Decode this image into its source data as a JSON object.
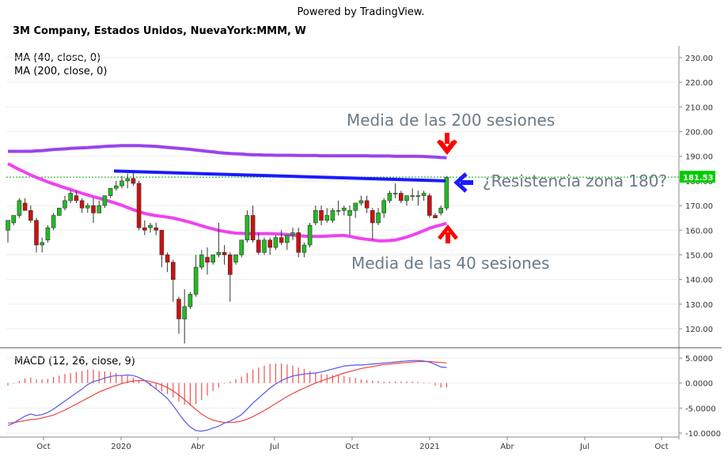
{
  "header": {
    "powered_by": "Powered by TradingView.",
    "symbol": "3M Company, Estados Unidos, NuevaYork:MMM, W"
  },
  "indicators": {
    "ma40": "MA (40, close, 0)",
    "ma200": "MA (200, close, 0)",
    "macd": "MACD (12, 26, close, 9)"
  },
  "annotations": {
    "ma200_label": "Media de las 200 sesiones",
    "ma40_label": "Media de las 40 sesiones",
    "resistance_label": "¿Resistencia zona 180?"
  },
  "price_badge": "181.53",
  "colors": {
    "up": "#22bb22",
    "down": "#cc1111",
    "ma200": "#9944ee",
    "ma40": "#ee44ee",
    "trendline": "#1a1aff",
    "arrow_red": "#ff0000",
    "arrow_blue": "#1a1aff",
    "macd_line": "#5555ee",
    "signal_line": "#ee4444",
    "badge": "#00cc00"
  },
  "chart_data": [
    {
      "type": "candlestick",
      "title": "3M Company, Estados Unidos, NuevaYork:MMM, W",
      "timeframe": "weekly",
      "ylim": [
        110,
        232
      ],
      "y_ticks": [
        "230.00",
        "220.00",
        "210.00",
        "200.00",
        "190.00",
        "180.00",
        "170.00",
        "160.00",
        "150.00",
        "140.00",
        "130.00",
        "120.00"
      ],
      "x_ticks": [
        "Oct",
        "2020",
        "Abr",
        "Jul",
        "Oct",
        "2021",
        "Abr",
        "Jul",
        "Oct"
      ],
      "last_price": 181.53,
      "candles": [
        {
          "o": 160,
          "h": 163,
          "l": 155,
          "c": 164
        },
        {
          "o": 163,
          "h": 165,
          "l": 162,
          "c": 166
        },
        {
          "o": 166,
          "h": 173,
          "l": 165,
          "c": 172
        },
        {
          "o": 171,
          "h": 173,
          "l": 168,
          "c": 168
        },
        {
          "o": 168,
          "h": 170,
          "l": 163,
          "c": 164
        },
        {
          "o": 164,
          "h": 165,
          "l": 151,
          "c": 154
        },
        {
          "o": 154,
          "h": 157,
          "l": 151,
          "c": 155
        },
        {
          "o": 156,
          "h": 162,
          "l": 155,
          "c": 161
        },
        {
          "o": 161,
          "h": 167,
          "l": 160,
          "c": 166
        },
        {
          "o": 166,
          "h": 169,
          "l": 166,
          "c": 169
        },
        {
          "o": 169,
          "h": 174,
          "l": 168,
          "c": 172
        },
        {
          "o": 172,
          "h": 176,
          "l": 171,
          "c": 175
        },
        {
          "o": 174,
          "h": 176,
          "l": 171,
          "c": 172
        },
        {
          "o": 172,
          "h": 173,
          "l": 167,
          "c": 169
        },
        {
          "o": 169,
          "h": 171,
          "l": 167,
          "c": 170
        },
        {
          "o": 170,
          "h": 173,
          "l": 163,
          "c": 167
        },
        {
          "o": 167,
          "h": 172,
          "l": 167,
          "c": 170
        },
        {
          "o": 170,
          "h": 174,
          "l": 169,
          "c": 174
        },
        {
          "o": 174,
          "h": 177,
          "l": 173,
          "c": 177
        },
        {
          "o": 177,
          "h": 180,
          "l": 176,
          "c": 178
        },
        {
          "o": 178,
          "h": 182,
          "l": 177,
          "c": 180
        },
        {
          "o": 180,
          "h": 183,
          "l": 177,
          "c": 181
        },
        {
          "o": 181,
          "h": 184,
          "l": 178,
          "c": 179
        },
        {
          "o": 179,
          "h": 180,
          "l": 160,
          "c": 161
        },
        {
          "o": 161,
          "h": 164,
          "l": 158,
          "c": 160
        },
        {
          "o": 161,
          "h": 163,
          "l": 159,
          "c": 162
        },
        {
          "o": 161,
          "h": 163,
          "l": 158,
          "c": 160
        },
        {
          "o": 160,
          "h": 160,
          "l": 145,
          "c": 150
        },
        {
          "o": 150,
          "h": 151,
          "l": 143,
          "c": 147
        },
        {
          "o": 147,
          "h": 148,
          "l": 131,
          "c": 140
        },
        {
          "o": 132,
          "h": 133,
          "l": 118,
          "c": 124
        },
        {
          "o": 124,
          "h": 136,
          "l": 114,
          "c": 129
        },
        {
          "o": 129,
          "h": 135,
          "l": 128,
          "c": 134
        },
        {
          "o": 134,
          "h": 150,
          "l": 133,
          "c": 145
        },
        {
          "o": 145,
          "h": 152,
          "l": 144,
          "c": 150
        },
        {
          "o": 149,
          "h": 153,
          "l": 142,
          "c": 147
        },
        {
          "o": 147,
          "h": 150,
          "l": 146,
          "c": 150
        },
        {
          "o": 150,
          "h": 163,
          "l": 149,
          "c": 151
        },
        {
          "o": 151,
          "h": 154,
          "l": 146,
          "c": 150
        },
        {
          "o": 150,
          "h": 151,
          "l": 131,
          "c": 142
        },
        {
          "o": 147,
          "h": 150,
          "l": 146,
          "c": 150
        },
        {
          "o": 150,
          "h": 156,
          "l": 149,
          "c": 156
        },
        {
          "o": 156,
          "h": 168,
          "l": 155,
          "c": 166
        },
        {
          "o": 166,
          "h": 170,
          "l": 155,
          "c": 156
        },
        {
          "o": 156,
          "h": 159,
          "l": 150,
          "c": 151
        },
        {
          "o": 151,
          "h": 157,
          "l": 150,
          "c": 156
        },
        {
          "o": 156,
          "h": 157,
          "l": 150,
          "c": 153
        },
        {
          "o": 153,
          "h": 158,
          "l": 152,
          "c": 157
        },
        {
          "o": 157,
          "h": 160,
          "l": 154,
          "c": 155
        },
        {
          "o": 155,
          "h": 158,
          "l": 152,
          "c": 158
        },
        {
          "o": 158,
          "h": 161,
          "l": 156,
          "c": 159
        },
        {
          "o": 159,
          "h": 161,
          "l": 149,
          "c": 151
        },
        {
          "o": 151,
          "h": 155,
          "l": 149,
          "c": 154
        },
        {
          "o": 154,
          "h": 163,
          "l": 153,
          "c": 162
        },
        {
          "o": 163,
          "h": 170,
          "l": 162,
          "c": 168
        },
        {
          "o": 168,
          "h": 170,
          "l": 162,
          "c": 164
        },
        {
          "o": 164,
          "h": 169,
          "l": 163,
          "c": 166
        },
        {
          "o": 164,
          "h": 169,
          "l": 163,
          "c": 168
        },
        {
          "o": 168,
          "h": 172,
          "l": 166,
          "c": 168
        },
        {
          "o": 168,
          "h": 170,
          "l": 166,
          "c": 169
        },
        {
          "o": 166,
          "h": 170,
          "l": 158,
          "c": 168
        },
        {
          "o": 168,
          "h": 171,
          "l": 165,
          "c": 171
        },
        {
          "o": 171,
          "h": 174,
          "l": 170,
          "c": 172
        },
        {
          "o": 172,
          "h": 174,
          "l": 167,
          "c": 169
        },
        {
          "o": 168,
          "h": 169,
          "l": 156,
          "c": 163
        },
        {
          "o": 163,
          "h": 169,
          "l": 162,
          "c": 167
        },
        {
          "o": 167,
          "h": 173,
          "l": 165,
          "c": 172
        },
        {
          "o": 172,
          "h": 176,
          "l": 171,
          "c": 175
        },
        {
          "o": 175,
          "h": 179,
          "l": 173,
          "c": 175
        },
        {
          "o": 175,
          "h": 176,
          "l": 171,
          "c": 172
        },
        {
          "o": 172,
          "h": 174,
          "l": 170,
          "c": 174
        },
        {
          "o": 174,
          "h": 177,
          "l": 172,
          "c": 174
        },
        {
          "o": 174,
          "h": 176,
          "l": 170,
          "c": 174
        },
        {
          "o": 174,
          "h": 176,
          "l": 172,
          "c": 175
        },
        {
          "o": 174,
          "h": 175,
          "l": 165,
          "c": 166
        },
        {
          "o": 166,
          "h": 167,
          "l": 165,
          "c": 165
        },
        {
          "o": 167,
          "h": 170,
          "l": 166,
          "c": 169
        },
        {
          "o": 169,
          "h": 182,
          "l": 168,
          "c": 181.5
        }
      ],
      "ma200": [
        192,
        192,
        192,
        192,
        192,
        192.2,
        192.3,
        192.5,
        192.7,
        192.9,
        193,
        193.2,
        193.3,
        193.4,
        193.5,
        193.7,
        193.8,
        194,
        194.1,
        194.2,
        194.3,
        194.3,
        194.3,
        194.3,
        194.2,
        194.1,
        194,
        193.8,
        193.6,
        193.4,
        193.2,
        193,
        192.8,
        192.5,
        192.3,
        192,
        191.8,
        191.5,
        191.3,
        191.1,
        191,
        190.9,
        190.7,
        190.6,
        190.6,
        190.5,
        190.5,
        190.4,
        190.4,
        190.4,
        190.4,
        190.3,
        190.3,
        190.3,
        190.3,
        190.2,
        190.2,
        190.2,
        190.2,
        190.2,
        190.2,
        190.2,
        190.2,
        190.2,
        190.1,
        190.1,
        190.1,
        190.1,
        190,
        190,
        190,
        190,
        190,
        189.9,
        189.8,
        189.7,
        189.5,
        189.4
      ],
      "ma40": [
        187,
        185.8,
        184.6,
        183.5,
        182.4,
        181.4,
        180.5,
        179.6,
        178.8,
        178,
        177.2,
        176.5,
        175.7,
        175,
        174.3,
        173.6,
        173,
        172.3,
        171.6,
        170.9,
        170.1,
        169.2,
        168.3,
        167.6,
        166.8,
        166.3,
        165.9,
        165.6,
        165.3,
        164.9,
        164.4,
        163.8,
        163.2,
        162.5,
        161.8,
        161.1,
        160.5,
        159.9,
        159.5,
        159.1,
        158.8,
        158.7,
        158.6,
        158.6,
        158.6,
        158.6,
        158.6,
        158.5,
        158.4,
        158.2,
        158,
        157.8,
        157.6,
        157.5,
        157.5,
        157.5,
        157.6,
        157.7,
        157.8,
        157.9,
        157.5,
        157,
        156.6,
        156.3,
        156,
        155.7,
        155.7,
        155.8,
        156,
        156.6,
        157.2,
        158,
        158.9,
        159.8,
        160.8,
        161.5,
        162.1,
        162.8
      ],
      "resistance_line": [
        184,
        180
      ]
    },
    {
      "type": "macd",
      "title": "MACD (12, 26, close, 9)",
      "ylim": [
        -10,
        5.5
      ],
      "y_ticks": [
        "5.0000",
        "0.0000",
        "-5.0000",
        "-10.0000"
      ],
      "macd": [
        -8.5,
        -8,
        -7.3,
        -6.6,
        -6.2,
        -6.5,
        -6.3,
        -5.9,
        -5.2,
        -4.4,
        -3.6,
        -2.8,
        -2,
        -1.2,
        -0.3,
        0.3,
        0.6,
        1,
        1.3,
        1.5,
        1.5,
        1.6,
        1.5,
        1.1,
        0.5,
        -0.3,
        -1.2,
        -2.1,
        -3.1,
        -4.5,
        -6.1,
        -7.6,
        -8.8,
        -9.5,
        -9.6,
        -9.4,
        -9,
        -8.6,
        -8,
        -7.6,
        -7,
        -6.3,
        -5.2,
        -4,
        -3,
        -2,
        -1,
        -0.2,
        0.5,
        1,
        1.4,
        1.6,
        1.8,
        1.9,
        2,
        2.2,
        2.5,
        2.8,
        3.1,
        3.4,
        3.5,
        3.6,
        3.6,
        3.7,
        3.8,
        3.9,
        4,
        4.1,
        4.2,
        4.3,
        4.4,
        4.5,
        4.5,
        4.4,
        4.2,
        3.7,
        3.2,
        3.1
      ],
      "signal": [
        -8,
        -7.9,
        -7.7,
        -7.5,
        -7.3,
        -7.2,
        -7,
        -6.7,
        -6.4,
        -5.9,
        -5.4,
        -4.8,
        -4.2,
        -3.6,
        -3,
        -2.4,
        -1.8,
        -1.3,
        -0.9,
        -0.5,
        -0.1,
        0.2,
        0.4,
        0.5,
        0.5,
        0.3,
        0,
        -0.4,
        -0.9,
        -1.6,
        -2.4,
        -3.3,
        -4.3,
        -5.3,
        -6.2,
        -6.9,
        -7.4,
        -7.7,
        -7.9,
        -7.9,
        -7.8,
        -7.6,
        -7.2,
        -6.7,
        -6.1,
        -5.5,
        -4.8,
        -4.1,
        -3.4,
        -2.7,
        -2.1,
        -1.5,
        -1,
        -0.5,
        0,
        0.4,
        0.8,
        1.2,
        1.6,
        2,
        2.3,
        2.6,
        2.9,
        3.1,
        3.3,
        3.5,
        3.7,
        3.8,
        3.9,
        4,
        4.1,
        4.2,
        4.3,
        4.3,
        4.3,
        4.2,
        4.1,
        4
      ],
      "histogram": [
        -0.5,
        -0.1,
        0.4,
        0.9,
        1.1,
        0.7,
        0.7,
        0.8,
        1.2,
        1.5,
        1.8,
        2,
        2.2,
        2.4,
        2.7,
        2.7,
        2.4,
        2.3,
        2.2,
        2,
        1.6,
        1.4,
        1.1,
        0.6,
        0,
        -0.6,
        -1.2,
        -1.7,
        -2.2,
        -2.9,
        -3.7,
        -4.3,
        -4.5,
        -4.2,
        -3.4,
        -2.5,
        -1.6,
        -0.9,
        -0.1,
        0.3,
        0.8,
        1.3,
        2,
        2.7,
        3.1,
        3.5,
        3.8,
        3.9,
        3.9,
        3.7,
        3.5,
        3.1,
        2.8,
        2.4,
        2,
        1.8,
        1.7,
        1.6,
        1.5,
        1.4,
        1.2,
        1,
        0.7,
        0.6,
        0.5,
        0.4,
        0.3,
        0.3,
        0.3,
        0.3,
        0.3,
        0.3,
        0.2,
        0.1,
        -0.1,
        -0.5,
        -0.9,
        -0.9
      ]
    }
  ]
}
